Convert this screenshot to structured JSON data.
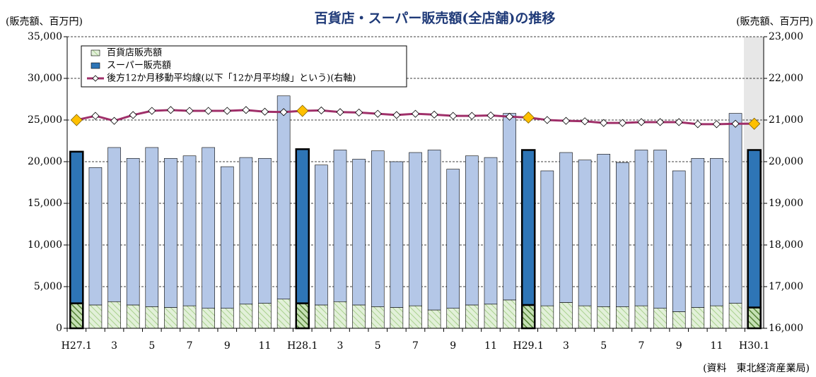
{
  "chart_data": {
    "type": "bar",
    "title": "百貨店・スーパー販売額(全店舗)の推移",
    "y_label": "(販売額、百万円)",
    "y2_label": "(販売額、百万円)",
    "source": "(資料　東北経済産業局)",
    "categories": [
      "H27.1",
      null,
      "3",
      null,
      "5",
      null,
      "7",
      null,
      "9",
      null,
      "11",
      null,
      "H28.1",
      null,
      "3",
      null,
      "5",
      null,
      "7",
      null,
      "9",
      null,
      "11",
      null,
      "H29.1",
      null,
      "3",
      null,
      "5",
      null,
      "7",
      null,
      "9",
      null,
      "11",
      null,
      "H30.1"
    ],
    "series": [
      {
        "name": "百貨店販売額",
        "color": "#e2f0d9",
        "values": [
          3000,
          2800,
          3200,
          2800,
          2600,
          2500,
          2700,
          2400,
          2400,
          2900,
          3000,
          3500,
          3000,
          2800,
          3200,
          2800,
          2600,
          2500,
          2700,
          2200,
          2400,
          2800,
          2900,
          3400,
          2800,
          2700,
          3100,
          2700,
          2600,
          2600,
          2700,
          2400,
          2000,
          2500,
          2700,
          3000,
          2500
        ]
      },
      {
        "name": "スーパー販売額",
        "color": "#b4c7e7",
        "values": [
          18200,
          16500,
          18500,
          17600,
          19100,
          17900,
          18000,
          19300,
          17000,
          17600,
          17400,
          24400,
          18500,
          16800,
          18200,
          17500,
          18700,
          17500,
          18400,
          19200,
          16700,
          17900,
          17600,
          22400,
          18600,
          16200,
          18000,
          17500,
          18300,
          17300,
          18700,
          19000,
          16900,
          17900,
          17700,
          22800,
          18900
        ]
      },
      {
        "name": "後方12か月移動平均線(以下「12か月平均線」という)(右軸)",
        "color": "#a0306a",
        "axis": "y2",
        "type": "line",
        "values": [
          21000,
          21100,
          20980,
          21120,
          21220,
          21240,
          21220,
          21220,
          21220,
          21240,
          21200,
          21190,
          21220,
          21230,
          21190,
          21180,
          21150,
          21120,
          21150,
          21130,
          21100,
          21100,
          21110,
          21080,
          21060,
          21000,
          20980,
          20970,
          20930,
          20930,
          20950,
          20950,
          20950,
          20900,
          20900,
          20910,
          20910
        ]
      }
    ],
    "stacked": true,
    "ylim": [
      0,
      35000
    ],
    "yticks": [
      0,
      {
        "value": 5000,
        "label": "5,000"
      },
      {
        "value": 10000,
        "label": "10,000"
      },
      {
        "value": 15000,
        "label": "15,000"
      },
      {
        "value": 20000,
        "label": "20,000"
      },
      {
        "value": 25000,
        "label": "25,000"
      },
      {
        "value": 30000,
        "label": "30,000"
      },
      {
        "value": 35000,
        "label": "35,000"
      }
    ],
    "y2lim": [
      16000,
      23000
    ],
    "y2ticks": [
      {
        "value": 16000,
        "label": "16,000"
      },
      {
        "value": 17000,
        "label": "17,000"
      },
      {
        "value": 18000,
        "label": "18,000"
      },
      {
        "value": 19000,
        "label": "19,000"
      },
      {
        "value": 20000,
        "label": "20,000"
      },
      {
        "value": 21000,
        "label": "21,000"
      },
      {
        "value": 22000,
        "label": "22,000"
      },
      {
        "value": 23000,
        "label": "23,000"
      }
    ],
    "grid": true,
    "legend": "upper left"
  }
}
